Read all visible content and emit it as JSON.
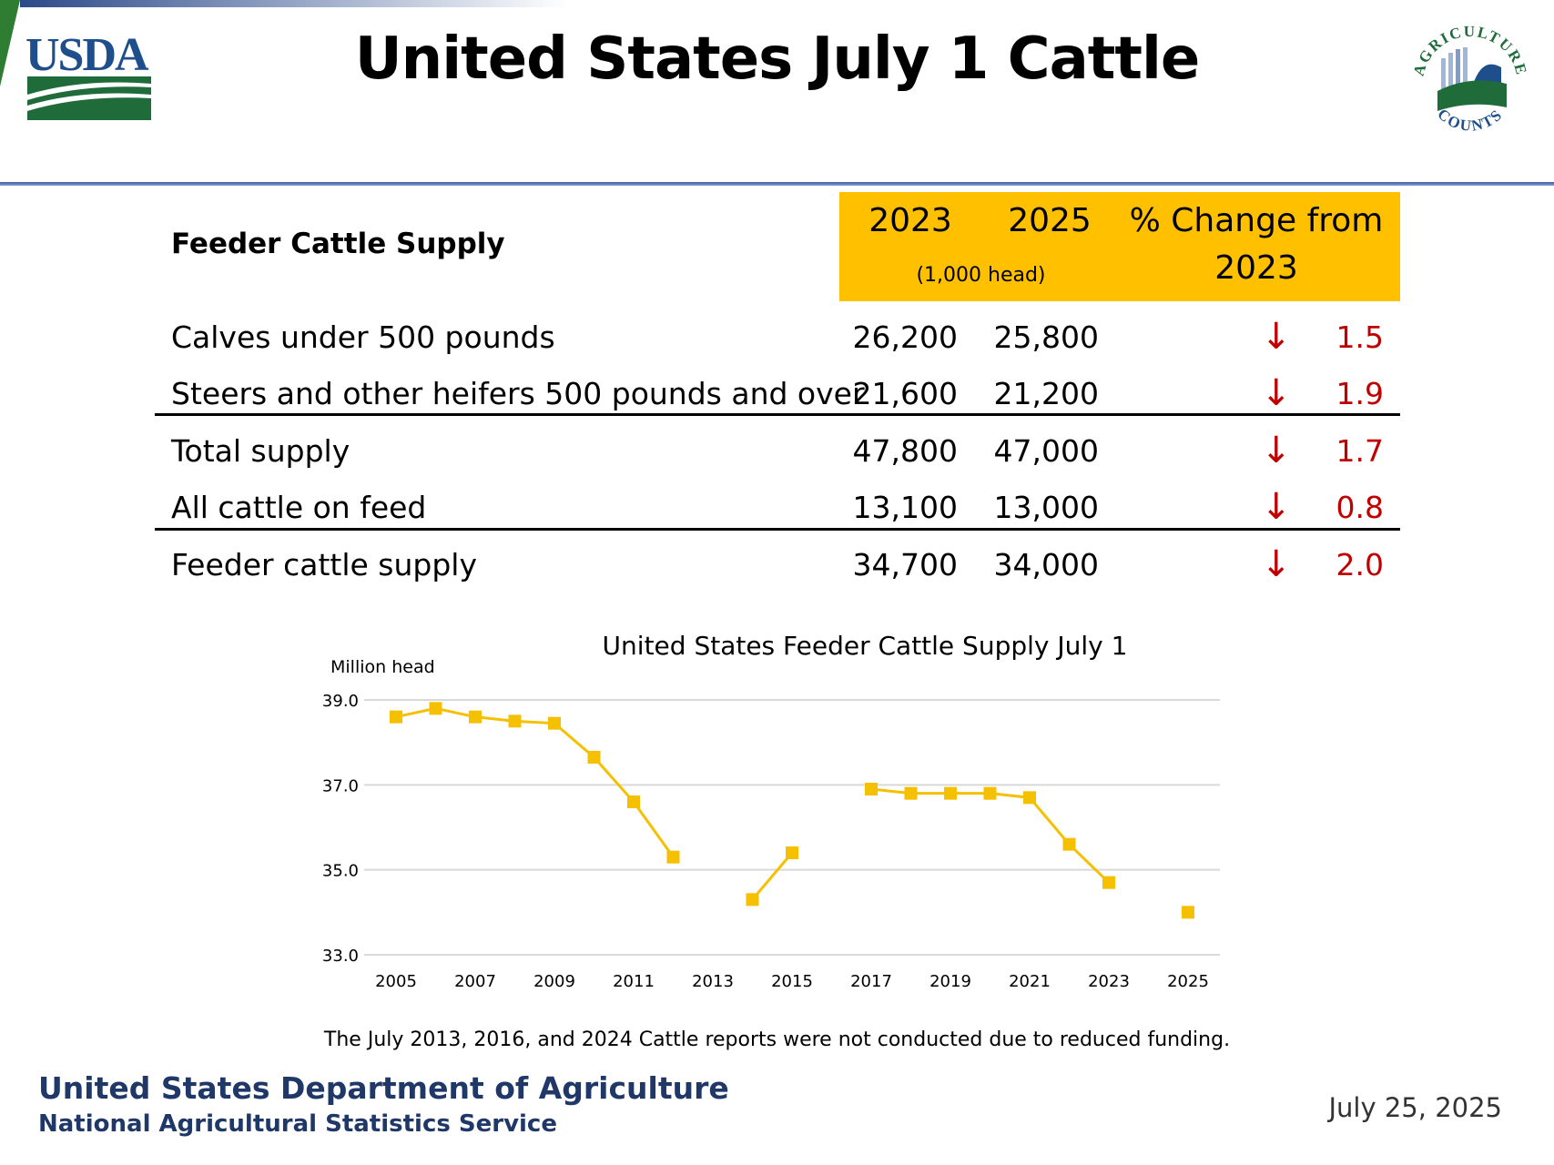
{
  "header": {
    "title": "United States July 1 Cattle",
    "usda_logo_text": "USDA",
    "ag_counts_logo_text": [
      "AGRICULTURE",
      "COUNTS"
    ]
  },
  "table": {
    "section_title": "Feeder Cattle Supply",
    "col_2023": "2023",
    "col_2025": "2025",
    "col_change": [
      "% Change from",
      "2023"
    ],
    "units": "(1,000 head)",
    "rows": [
      {
        "label": "Calves under 500 pounds",
        "v2023": "26,200",
        "v2025": "25,800",
        "direction": "down",
        "pct": "1.5"
      },
      {
        "label": "Steers and other heifers 500 pounds and over",
        "v2023": "21,600",
        "v2025": "21,200",
        "direction": "down",
        "pct": "1.9"
      },
      {
        "label": "Total supply",
        "v2023": "47,800",
        "v2025": "47,000",
        "direction": "down",
        "pct": "1.7"
      },
      {
        "label": "All cattle on feed",
        "v2023": "13,100",
        "v2025": "13,000",
        "direction": "down",
        "pct": "0.8"
      },
      {
        "label": "Feeder cattle supply",
        "v2023": "34,700",
        "v2025": "34,000",
        "direction": "down",
        "pct": "2.0"
      }
    ],
    "down_arrow_glyph": "↓",
    "down_color": "#c00000",
    "header_color": "#ffc000"
  },
  "chart_data": {
    "type": "line",
    "title": "United States Feeder Cattle Supply July 1",
    "ylabel": "Million head",
    "xlabel": "",
    "ylim": [
      33.0,
      39.0
    ],
    "yticks": [
      "39.0",
      "37.0",
      "35.0",
      "33.0"
    ],
    "ytick_values": [
      39.0,
      37.0,
      35.0,
      33.0
    ],
    "xticks": [
      "2005",
      "2007",
      "2009",
      "2011",
      "2013",
      "2015",
      "2017",
      "2019",
      "2021",
      "2023",
      "2025"
    ],
    "x": [
      2005,
      2006,
      2007,
      2008,
      2009,
      2010,
      2011,
      2012,
      2013,
      2014,
      2015,
      2016,
      2017,
      2018,
      2019,
      2020,
      2021,
      2022,
      2023,
      2024,
      2025
    ],
    "series": [
      {
        "values": [
          38.6,
          38.8,
          38.6,
          38.5,
          38.45,
          37.65,
          36.6,
          35.3,
          null,
          34.3,
          35.4,
          null,
          36.9,
          36.8,
          36.8,
          36.8,
          36.7,
          35.6,
          34.7,
          null,
          34.0
        ],
        "color": "#f5c000",
        "marker": "square"
      }
    ],
    "grid": true,
    "legend": "none",
    "note": "The July 2013, 2016, and 2024 Cattle reports were not conducted due to reduced funding."
  },
  "footer": {
    "org": "United States Department of Agriculture",
    "sub_org": "National Agricultural Statistics Service",
    "date": "July 25, 2025"
  }
}
